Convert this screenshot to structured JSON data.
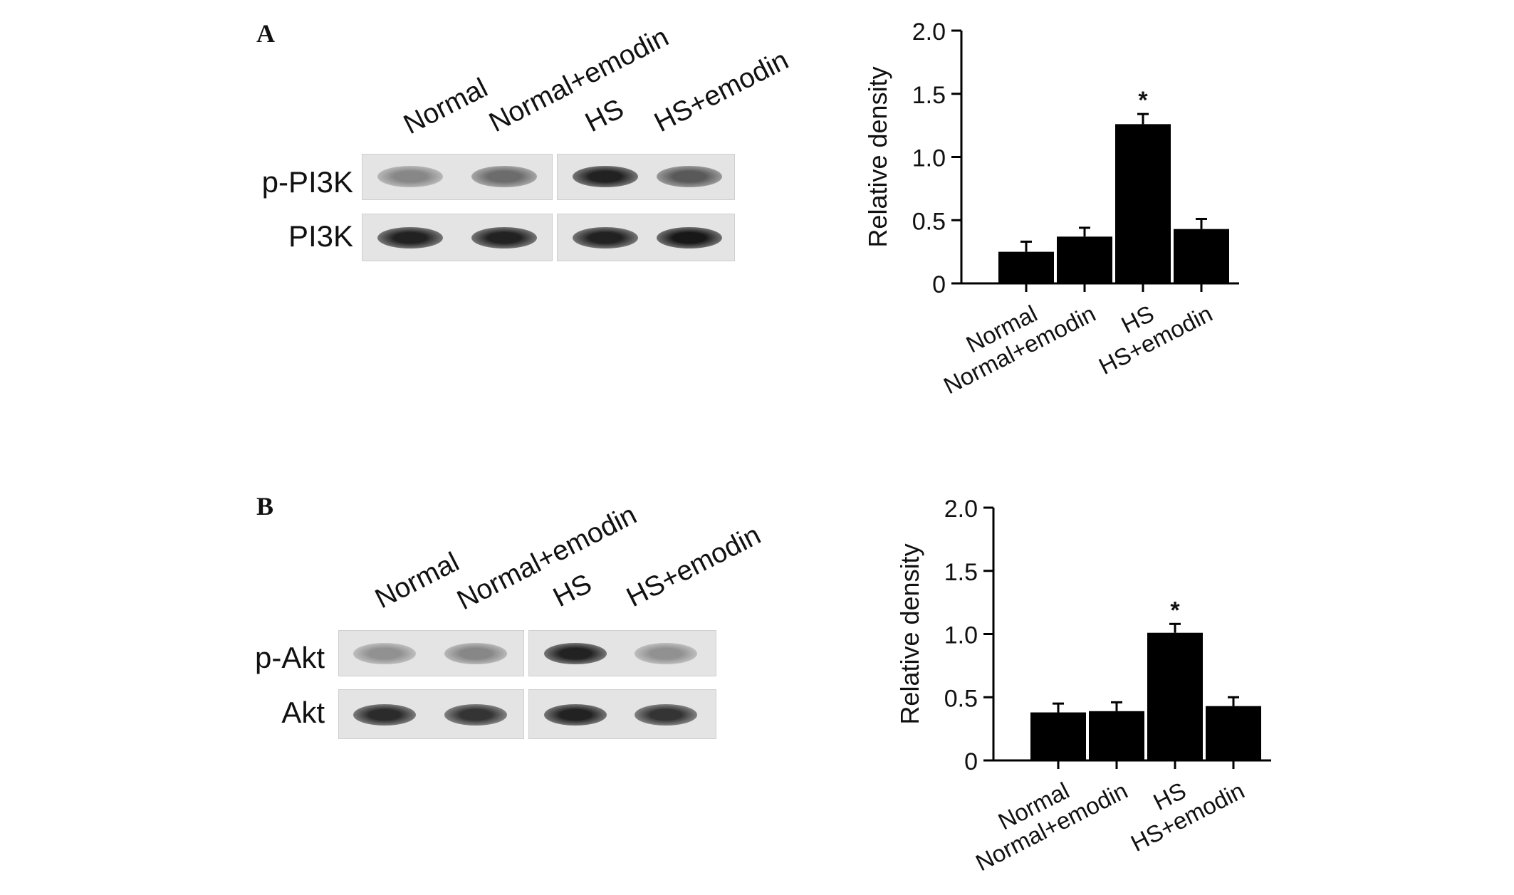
{
  "panels": {
    "a": {
      "letter": "A",
      "lanes": [
        "Normal",
        "Normal+emodin",
        "HS",
        "HS+emodin"
      ],
      "blot_rows": [
        {
          "label": "p-PI3K",
          "band_intensity": [
            0.35,
            0.5,
            0.9,
            0.6
          ]
        },
        {
          "label": "PI3K",
          "band_intensity": [
            0.9,
            0.9,
            0.9,
            0.95
          ]
        }
      ]
    },
    "b": {
      "letter": "B",
      "lanes": [
        "Normal",
        "Normal+emodin",
        "HS",
        "HS+emodin"
      ],
      "blot_rows": [
        {
          "label": "p-Akt",
          "band_intensity": [
            0.3,
            0.35,
            0.9,
            0.3
          ]
        },
        {
          "label": "Akt",
          "band_intensity": [
            0.85,
            0.8,
            0.9,
            0.8
          ]
        }
      ]
    }
  },
  "chart_data": [
    {
      "type": "bar",
      "categories": [
        "Normal",
        "Normal+emodin",
        "HS",
        "HS+emodin"
      ],
      "values": [
        0.25,
        0.37,
        1.26,
        0.43
      ],
      "errors": [
        0.08,
        0.07,
        0.08,
        0.08
      ],
      "annotations": [
        "",
        "",
        "*",
        ""
      ],
      "title": "",
      "xlabel": "",
      "ylabel": "Relative density",
      "ylim": [
        0,
        2.0
      ],
      "yticks": [
        "0",
        "0.5",
        "1.0",
        "1.5",
        "2.0"
      ],
      "bar_color": "#000000",
      "grid": false
    },
    {
      "type": "bar",
      "categories": [
        "Normal",
        "Normal+emodin",
        "HS",
        "HS+emodin"
      ],
      "values": [
        0.38,
        0.39,
        1.01,
        0.43
      ],
      "errors": [
        0.07,
        0.07,
        0.07,
        0.07
      ],
      "annotations": [
        "",
        "",
        "*",
        ""
      ],
      "title": "",
      "xlabel": "",
      "ylabel": "Relative density",
      "ylim": [
        0,
        2.0
      ],
      "yticks": [
        "0",
        "0.5",
        "1.0",
        "1.5",
        "2.0"
      ],
      "bar_color": "#000000",
      "grid": false
    }
  ]
}
